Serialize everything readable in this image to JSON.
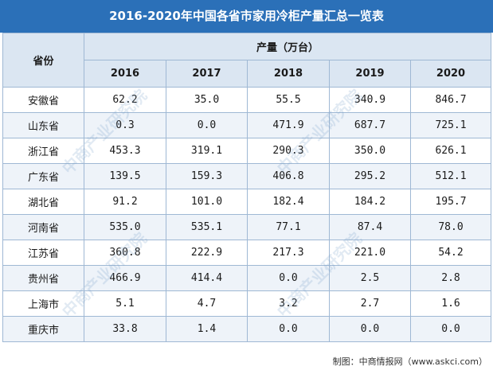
{
  "title": "2016-2020年中国各省市家用冷柜产量汇总一览表",
  "header": {
    "province_label": "省份",
    "unit_label": "产量（万台）",
    "years": [
      "2016",
      "2017",
      "2018",
      "2019",
      "2020"
    ]
  },
  "rows": [
    {
      "province": "安徽省",
      "values": [
        "62.2",
        "35.0",
        "55.5",
        "340.9",
        "846.7"
      ]
    },
    {
      "province": "山东省",
      "values": [
        "0.3",
        "0.0",
        "471.9",
        "687.7",
        "725.1"
      ]
    },
    {
      "province": "浙江省",
      "values": [
        "453.3",
        "319.1",
        "290.3",
        "350.0",
        "626.1"
      ]
    },
    {
      "province": "广东省",
      "values": [
        "139.5",
        "159.3",
        "406.8",
        "295.2",
        "512.1"
      ]
    },
    {
      "province": "湖北省",
      "values": [
        "91.2",
        "101.0",
        "182.4",
        "184.2",
        "195.7"
      ]
    },
    {
      "province": "河南省",
      "values": [
        "535.0",
        "535.1",
        "77.1",
        "87.4",
        "78.0"
      ]
    },
    {
      "province": "江苏省",
      "values": [
        "360.8",
        "222.9",
        "217.3",
        "221.0",
        "54.2"
      ]
    },
    {
      "province": "贵州省",
      "values": [
        "466.9",
        "414.4",
        "0.0",
        "2.5",
        "2.8"
      ]
    },
    {
      "province": "上海市",
      "values": [
        "5.1",
        "4.7",
        "3.2",
        "2.7",
        "1.6"
      ]
    },
    {
      "province": "重庆市",
      "values": [
        "33.8",
        "1.4",
        "0.0",
        "0.0",
        "0.0"
      ]
    }
  ],
  "footer": "制图：中商情报网（www.askci.com）",
  "watermark": "中商产业研究院",
  "colors": {
    "title_bg": "#2b70b8",
    "header_bg": "#dbe6f2",
    "border": "#9fb8d4",
    "alt_row": "#eef3f9"
  }
}
